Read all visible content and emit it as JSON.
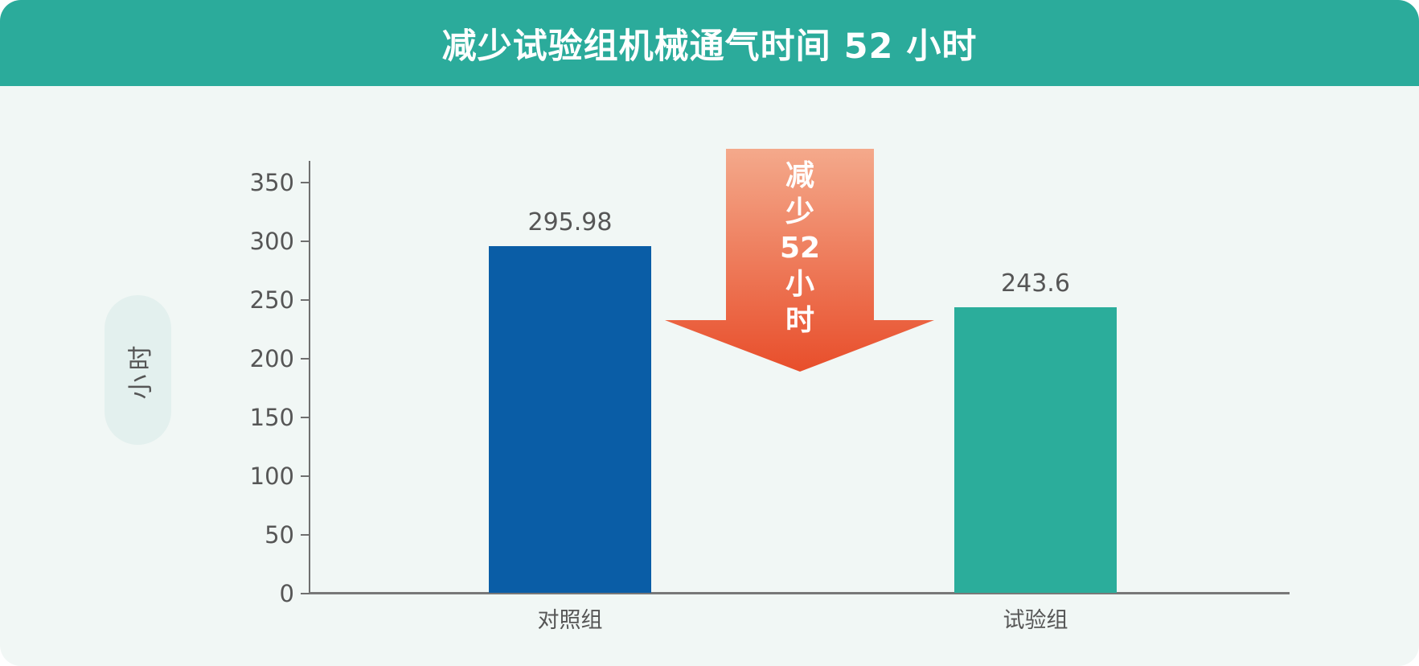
{
  "header": {
    "title": "减少试验组机械通气时间 52 小时"
  },
  "colors": {
    "header_bg": "#2BAB9B",
    "card_bg": "#F1F7F5",
    "pill_bg": "#E3F0EE",
    "axis": "#6f6f6f",
    "text_gray": "#565656",
    "bar_control": "#0A5DA6",
    "bar_experimental": "#2BAD9B",
    "arrow_gradient_top": "#F4A98B",
    "arrow_gradient_bottom": "#E84E2B",
    "arrow_text": "#ffffff"
  },
  "chart_data": {
    "type": "bar",
    "title": "减少试验组机械通气时间 52 小时",
    "categories": [
      "对照组",
      "试验组"
    ],
    "values": [
      295.98,
      243.6
    ],
    "value_labels": [
      "295.98",
      "243.6"
    ],
    "bar_colors": [
      "#0A5DA6",
      "#2BAD9B"
    ],
    "bar_names": [
      "bar-control-group",
      "bar-experimental-group"
    ],
    "xlabel": "",
    "ylabel": "小时",
    "ylim": [
      0,
      350
    ],
    "yticks": [
      0,
      50,
      100,
      150,
      200,
      250,
      300,
      350
    ],
    "grid": "off",
    "legend": "none"
  },
  "annotation": {
    "text": "减少52小时",
    "lines": [
      "减",
      "少",
      "52",
      "小",
      "时"
    ]
  }
}
